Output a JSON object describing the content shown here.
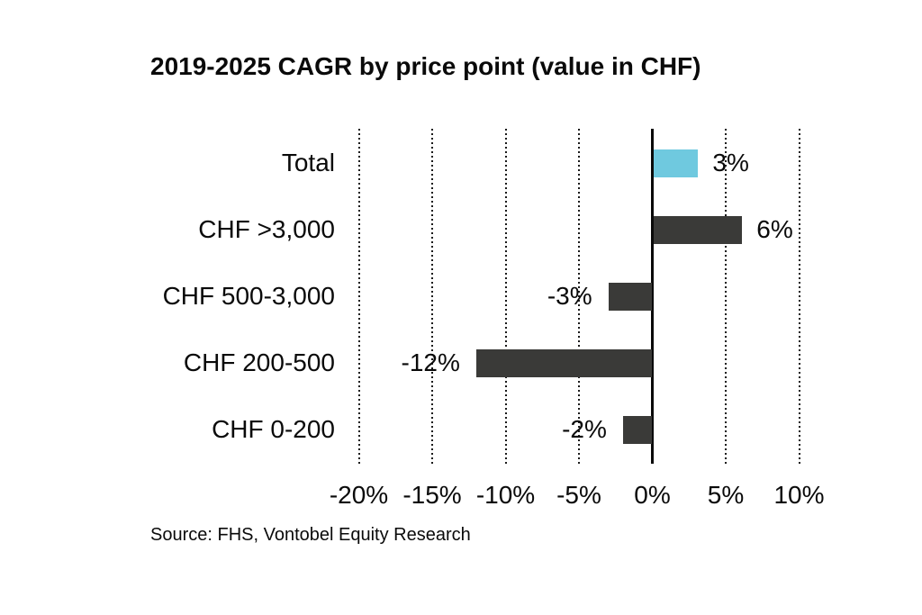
{
  "source": "Source: FHS, Vontobel Equity Research",
  "colors": {
    "highlight": "#6FC9DF",
    "default": "#3A3A38",
    "text": "#0a0a0a",
    "gridline": "#1a1a1a"
  },
  "chart_data": {
    "type": "bar",
    "orientation": "horizontal",
    "title": "2019-2025 CAGR by price point (value in CHF)",
    "xlabel": "",
    "ylabel": "",
    "categories": [
      "Total",
      "CHF >3,000",
      "CHF 500-3,000",
      "CHF 200-500",
      "CHF 0-200"
    ],
    "values": [
      3,
      6,
      -3,
      -12,
      -2
    ],
    "labels": [
      "3%",
      "6%",
      "-3%",
      "-12%",
      "-2%"
    ],
    "bar_colors": [
      "highlight",
      "default",
      "default",
      "default",
      "default"
    ],
    "xlim": [
      -20,
      10
    ],
    "xticks": [
      -20,
      -15,
      -10,
      -5,
      0,
      5,
      10
    ],
    "xtick_labels": [
      "-20%",
      "-15%",
      "-10%",
      "-5%",
      "0%",
      "5%",
      "10%"
    ],
    "grid": "vertical-dotted",
    "zero_line": true,
    "legend": "none"
  }
}
